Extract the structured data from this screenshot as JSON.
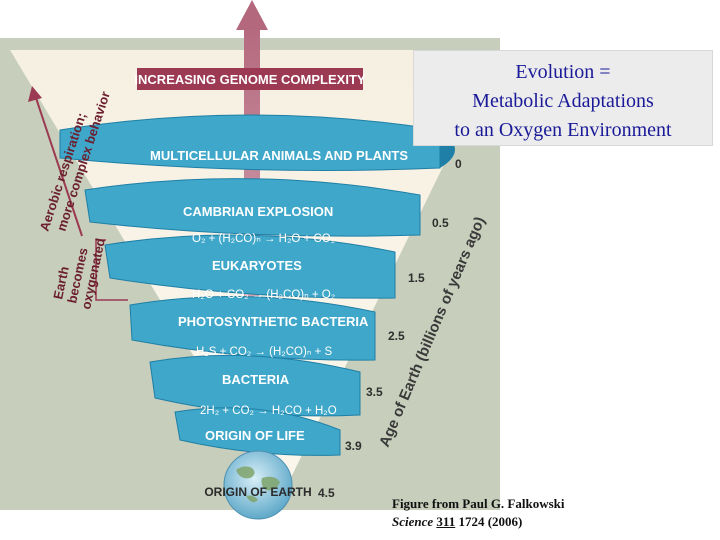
{
  "title": {
    "lines": [
      "Evolution =",
      "Metabolic Adaptations",
      "to an Oxygen Environment"
    ]
  },
  "banner": "INCREASING GENOME COMPLEXITY",
  "bands": [
    {
      "label": "MULTICELLULAR ANIMALS AND PLANTS",
      "age": "0"
    },
    {
      "label": "CAMBRIAN EXPLOSION",
      "age": "0.5"
    },
    {
      "label": "EUKARYOTES",
      "age": "1.5"
    },
    {
      "label": "PHOTOSYNTHETIC BACTERIA",
      "age": "2.5"
    },
    {
      "label": "BACTERIA",
      "age": "3.5"
    },
    {
      "label": "ORIGIN OF LIFE",
      "age": "3.9"
    },
    {
      "label": "ORIGIN OF EARTH",
      "age": "4.5"
    }
  ],
  "equations": [
    "O₂ + (H₂CO)ₙ → H₂O + CO₂",
    "H₂O + CO₂ → (H₂CO)ₙ + O₂",
    "H₂S + CO₂ → (H₂CO)ₙ + S",
    "2H₂ + CO₂ → H₂CO + H₂O"
  ],
  "side_labels": {
    "aerobic_line1": "Aerobic respiration;",
    "aerobic_line2": "more complex behavior",
    "earth_line1": "Earth",
    "earth_line2": "becomes",
    "earth_line3": "oxygenated"
  },
  "axis_label": "Age of Earth (billions of years ago)",
  "caption": {
    "line1": "Figure from Paul G. Falkowski",
    "journal": "Science",
    "volume": "311",
    "pages": "1724 (2006)"
  },
  "colors": {
    "background": "#c7cebb",
    "funnel": "#f3ead8",
    "spiral": "#3fa7c9",
    "spiral_edge": "#1f7fa6",
    "banner": "#9b3a52",
    "arrow": "#b4687e",
    "title_text": "#1a1a99"
  }
}
